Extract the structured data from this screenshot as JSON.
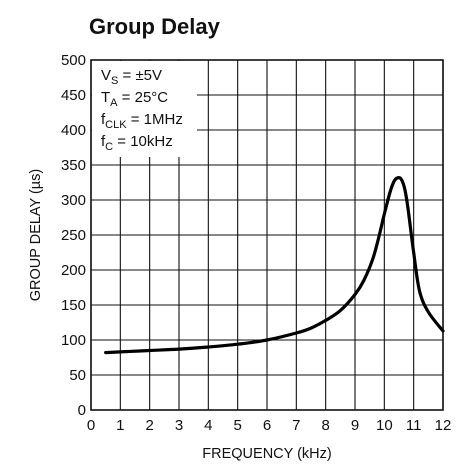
{
  "chart_data": {
    "type": "line",
    "title": "Group Delay",
    "xlabel": "FREQUENCY (kHz)",
    "ylabel": "GROUP DELAY (µs)",
    "xlim": [
      0,
      12
    ],
    "ylim": [
      0,
      500
    ],
    "x_ticks": [
      "0",
      "1",
      "2",
      "3",
      "4",
      "5",
      "6",
      "7",
      "8",
      "9",
      "10",
      "11",
      "12"
    ],
    "y_ticks": [
      "0",
      "50",
      "100",
      "150",
      "200",
      "250",
      "300",
      "350",
      "400",
      "450",
      "500"
    ],
    "grid": true,
    "conditions": [
      {
        "main": "V",
        "sub": "S",
        "rest": " = ±5V"
      },
      {
        "main": "T",
        "sub": "A",
        "rest": " = 25°C"
      },
      {
        "main": "f",
        "sub": "CLK",
        "rest": " = 1MHz"
      },
      {
        "main": "f",
        "sub": "C",
        "rest": " = 10kHz"
      }
    ],
    "series": [
      {
        "x": [
          0.5,
          1,
          2,
          3,
          4,
          5,
          6,
          7,
          7.5,
          8,
          8.5,
          9,
          9.3,
          9.6,
          9.8,
          10,
          10.2,
          10.35,
          10.5,
          10.6,
          10.7,
          10.8,
          11,
          11.2,
          11.5,
          12
        ],
        "y": [
          82,
          83,
          85,
          87,
          90,
          94,
          100,
          110,
          117,
          128,
          142,
          165,
          185,
          215,
          245,
          280,
          312,
          328,
          332,
          328,
          315,
          290,
          225,
          170,
          140,
          113
        ]
      }
    ]
  }
}
